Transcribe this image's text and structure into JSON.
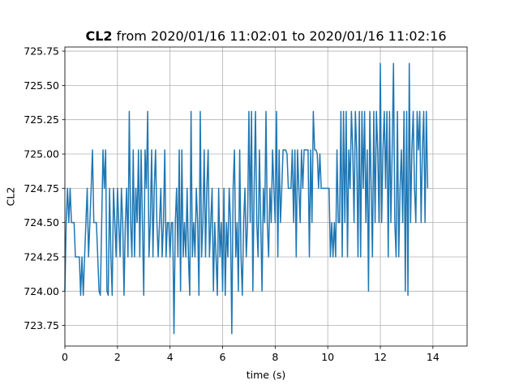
{
  "chart_data": {
    "type": "line",
    "title": {
      "bold": "CL2",
      "rest": " from 2020/01/16 11:02:01 to 2020/01/16 11:02:16"
    },
    "xlabel": "time (s)",
    "ylabel": "CL2",
    "xlim": [
      0,
      15.3
    ],
    "ylim": [
      723.6,
      725.78
    ],
    "xticks": [
      0,
      2,
      4,
      6,
      8,
      10,
      12,
      14
    ],
    "xtick_labels": [
      "0",
      "2",
      "4",
      "6",
      "8",
      "10",
      "12",
      "14"
    ],
    "yticks": [
      723.75,
      724.0,
      724.25,
      724.5,
      724.75,
      725.0,
      725.25,
      725.5,
      725.75
    ],
    "ytick_labels": [
      "723.75",
      "724.00",
      "724.25",
      "724.50",
      "724.75",
      "725.00",
      "725.25",
      "725.50",
      "725.75"
    ],
    "grid": true,
    "color": "#1f77b4",
    "series": [
      {
        "dt": 0.05,
        "values": [
          724.0,
          724.5,
          724.75,
          724.5,
          724.75,
          724.5,
          724.5,
          724.5,
          724.25,
          724.25,
          724.25,
          724.25,
          723.97,
          724.25,
          723.97,
          724.25,
          724.5,
          724.75,
          724.25,
          724.5,
          724.75,
          725.03,
          724.5,
          724.5,
          724.5,
          724.25,
          724.0,
          723.97,
          724.5,
          725.03,
          724.75,
          725.03,
          724.0,
          723.97,
          724.75,
          724.25,
          723.97,
          724.75,
          724.5,
          724.25,
          724.75,
          724.5,
          724.25,
          724.75,
          724.5,
          723.97,
          724.5,
          724.75,
          724.25,
          725.31,
          724.5,
          724.25,
          725.03,
          724.25,
          724.75,
          724.5,
          725.03,
          724.25,
          725.03,
          724.5,
          723.97,
          725.03,
          724.75,
          725.31,
          724.25,
          724.5,
          725.03,
          724.25,
          724.75,
          725.03,
          724.5,
          724.25,
          724.5,
          724.75,
          724.25,
          724.5,
          725.03,
          724.25,
          724.5,
          724.5,
          724.25,
          724.5,
          724.5,
          723.69,
          724.5,
          724.75,
          724.25,
          725.03,
          724.0,
          725.03,
          724.25,
          724.5,
          724.25,
          724.75,
          724.25,
          723.97,
          725.31,
          724.25,
          724.5,
          724.25,
          724.75,
          724.5,
          723.97,
          725.31,
          724.25,
          724.5,
          725.03,
          724.25,
          724.75,
          725.03,
          724.25,
          724.5,
          724.75,
          724.0,
          724.5,
          724.25,
          723.97,
          724.75,
          724.25,
          724.5,
          724.0,
          724.75,
          723.97,
          724.5,
          724.25,
          724.75,
          724.5,
          723.69,
          724.75,
          725.03,
          724.25,
          724.5,
          724.0,
          725.03,
          724.25,
          723.97,
          724.5,
          724.75,
          724.25,
          724.5,
          725.31,
          724.5,
          725.31,
          724.0,
          724.75,
          725.31,
          724.5,
          724.25,
          725.03,
          724.5,
          724.0,
          724.75,
          724.5,
          725.31,
          724.5,
          724.25,
          724.75,
          724.5,
          725.03,
          724.75,
          724.5,
          725.31,
          724.25,
          725.03,
          724.5,
          724.75,
          725.03,
          725.03,
          725.03,
          725.0,
          724.75,
          724.75,
          724.75,
          725.03,
          724.5,
          725.03,
          724.25,
          725.03,
          724.75,
          724.5,
          725.03,
          724.75,
          725.03,
          725.03,
          725.03,
          725.03,
          724.25,
          725.03,
          724.5,
          725.31,
          725.03,
          725.03,
          725.0,
          724.75,
          725.0,
          724.75,
          724.75,
          724.75,
          724.75,
          724.75,
          724.75,
          724.75,
          724.25,
          724.5,
          724.25,
          724.5,
          724.25,
          725.03,
          724.5,
          724.5,
          725.31,
          724.25,
          725.31,
          724.5,
          725.31,
          724.25,
          725.03,
          724.75,
          725.31,
          725.03,
          724.5,
          725.31,
          725.03,
          724.25,
          725.31,
          724.25,
          725.31,
          724.75,
          725.31,
          724.5,
          725.03,
          724.0,
          725.31,
          724.75,
          724.25,
          725.31,
          724.5,
          725.31,
          725.03,
          724.5,
          725.66,
          724.5,
          725.03,
          725.31,
          724.75,
          725.31,
          724.25,
          725.31,
          724.5,
          725.03,
          725.66,
          724.5,
          724.25,
          725.31,
          724.25,
          724.75,
          725.03,
          724.5,
          725.31,
          724.0,
          725.31,
          723.97,
          725.66,
          724.5,
          725.03,
          725.31,
          724.75,
          724.5,
          725.31,
          725.03,
          725.31,
          724.5,
          725.03,
          725.31,
          724.5,
          725.31,
          724.75
        ]
      }
    ]
  }
}
